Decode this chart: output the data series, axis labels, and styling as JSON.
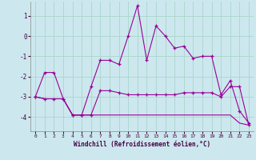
{
  "xlabel": "Windchill (Refroidissement éolien,°C)",
  "background_color": "#cce8ee",
  "grid_color": "#aad4cc",
  "line_color": "#990099",
  "xlim": [
    -0.5,
    23.5
  ],
  "ylim": [
    -4.7,
    1.7
  ],
  "yticks": [
    -4,
    -3,
    -2,
    -1,
    0,
    1
  ],
  "xticks": [
    0,
    1,
    2,
    3,
    4,
    5,
    6,
    7,
    8,
    9,
    10,
    11,
    12,
    13,
    14,
    15,
    16,
    17,
    18,
    19,
    20,
    21,
    22,
    23
  ],
  "hours": [
    0,
    1,
    2,
    3,
    4,
    5,
    6,
    7,
    8,
    9,
    10,
    11,
    12,
    13,
    14,
    15,
    16,
    17,
    18,
    19,
    20,
    21,
    22,
    23
  ],
  "line1": [
    -3.0,
    -1.8,
    -1.8,
    -3.1,
    -3.9,
    -3.9,
    -2.5,
    -1.2,
    -1.2,
    -1.4,
    0.0,
    1.5,
    -1.2,
    0.5,
    0.0,
    -0.6,
    -0.5,
    -1.1,
    -1.0,
    -1.0,
    -2.9,
    -2.2,
    -3.7,
    -4.3
  ],
  "line2": [
    -3.0,
    -3.1,
    -3.1,
    -3.1,
    -3.9,
    -3.9,
    -3.9,
    -2.7,
    -2.7,
    -2.8,
    -2.9,
    -2.9,
    -2.9,
    -2.9,
    -2.9,
    -2.9,
    -2.8,
    -2.8,
    -2.8,
    -2.8,
    -3.0,
    -2.5,
    -2.5,
    -4.4
  ],
  "line3": [
    -3.0,
    -3.1,
    -3.1,
    -3.1,
    -3.9,
    -3.9,
    -3.9,
    -3.9,
    -3.9,
    -3.9,
    -3.9,
    -3.9,
    -3.9,
    -3.9,
    -3.9,
    -3.9,
    -3.9,
    -3.9,
    -3.9,
    -3.9,
    -3.9,
    -3.9,
    -4.3,
    -4.4
  ]
}
